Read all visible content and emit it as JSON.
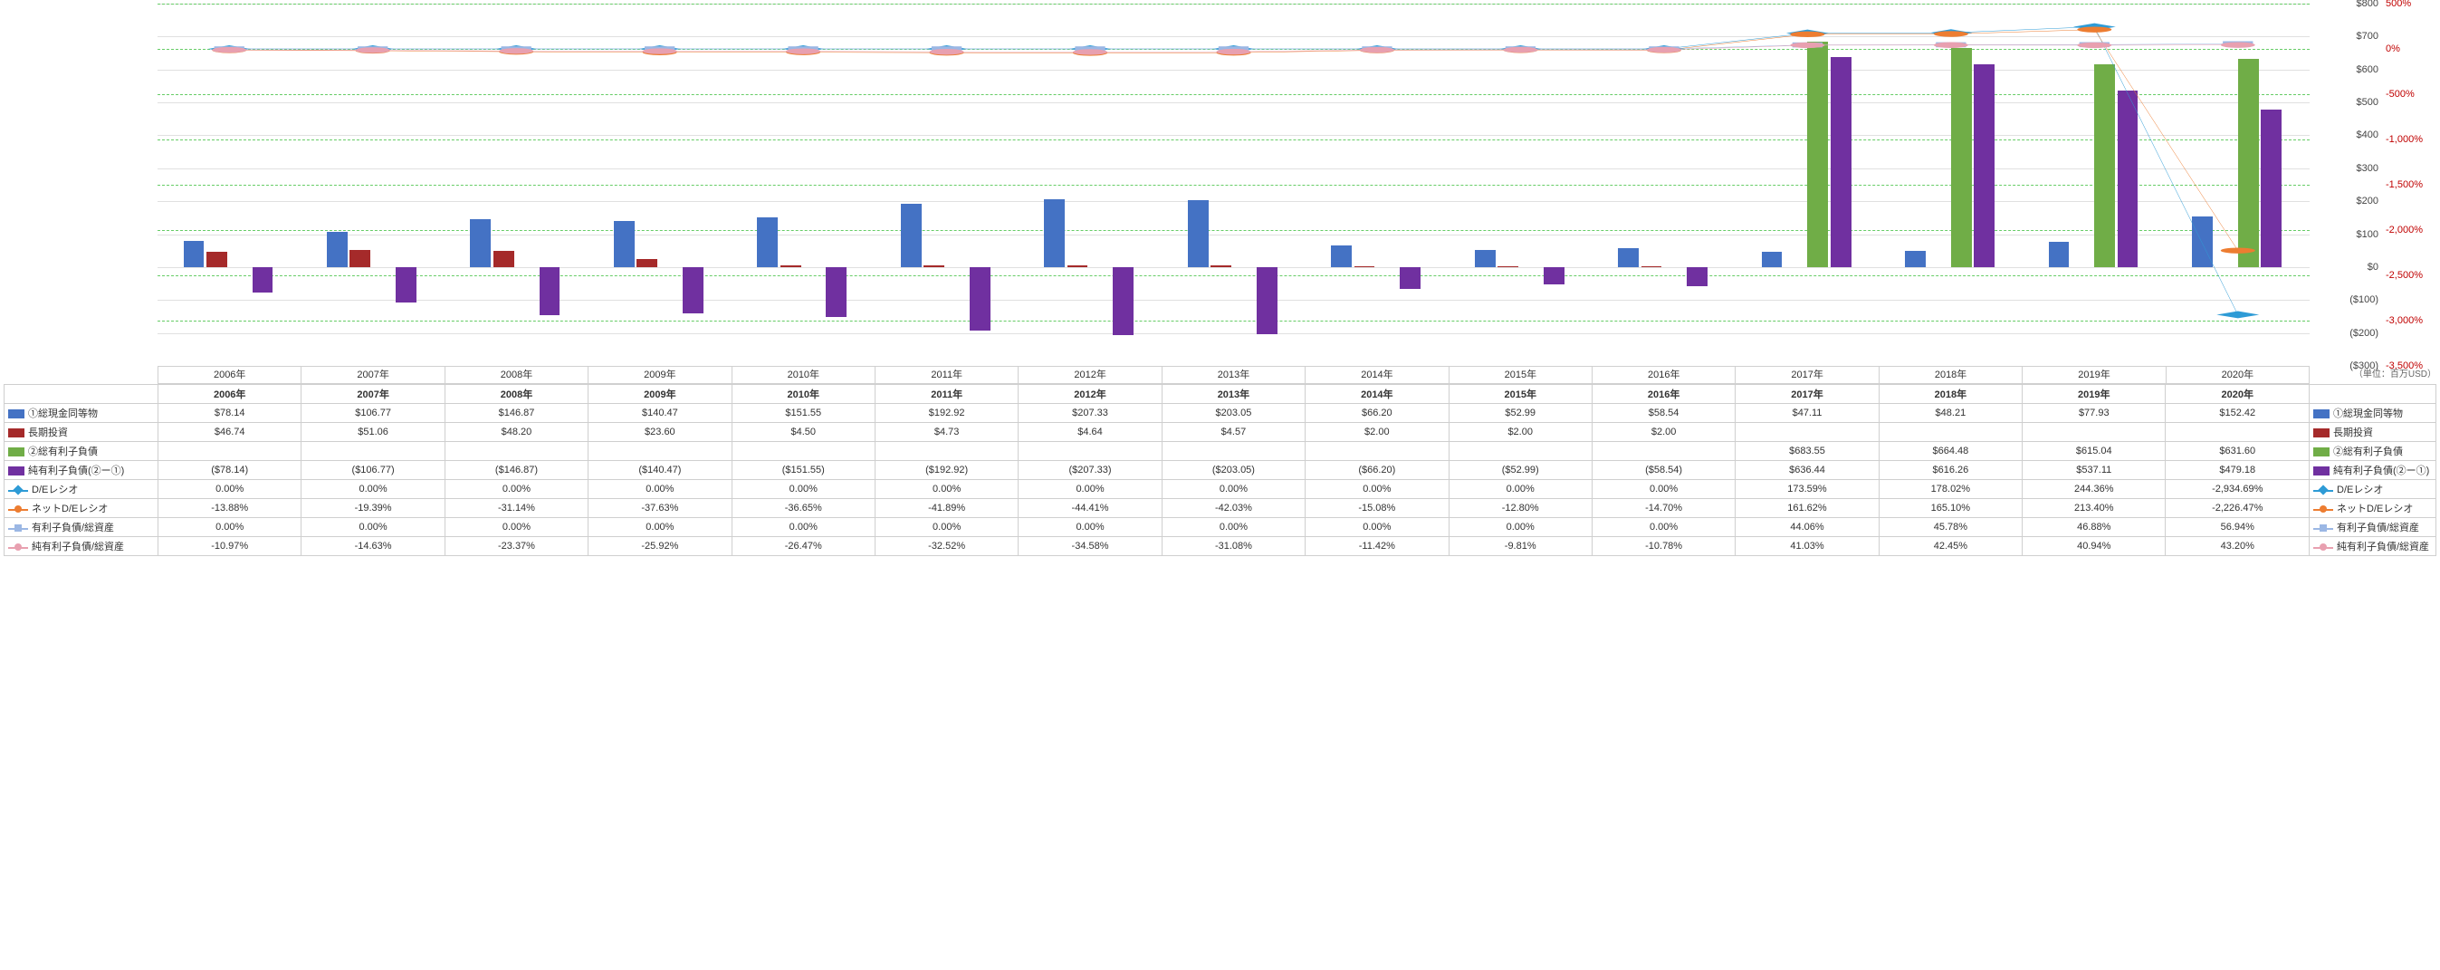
{
  "unit_label": "（単位：百万USD）",
  "years": [
    "2006年",
    "2007年",
    "2008年",
    "2009年",
    "2010年",
    "2011年",
    "2012年",
    "2013年",
    "2014年",
    "2015年",
    "2016年",
    "2017年",
    "2018年",
    "2019年",
    "2020年"
  ],
  "chart": {
    "plot_bg": "#ffffff",
    "grid_color": "#e0e0e0",
    "grid_dash_color": "#66cc66",
    "left_axis": {
      "min": -300,
      "max": 800,
      "step": 100,
      "format": "usd"
    },
    "right_axis": {
      "min": -3500,
      "max": 500,
      "step": 500,
      "format": "pct",
      "color": "#c00000"
    }
  },
  "series": [
    {
      "key": "cash",
      "name": "①総現金同等物",
      "type": "bar",
      "axis": "left",
      "color": "#4472c4",
      "marker": "bar",
      "display": [
        "$78.14",
        "$106.77",
        "$146.87",
        "$140.47",
        "$151.55",
        "$192.92",
        "$207.33",
        "$203.05",
        "$66.20",
        "$52.99",
        "$58.54",
        "$47.11",
        "$48.21",
        "$77.93",
        "$152.42"
      ],
      "values": [
        78.14,
        106.77,
        146.87,
        140.47,
        151.55,
        192.92,
        207.33,
        203.05,
        66.2,
        52.99,
        58.54,
        47.11,
        48.21,
        77.93,
        152.42
      ]
    },
    {
      "key": "lti",
      "name": "長期投資",
      "type": "bar",
      "axis": "left",
      "color": "#a52a2a",
      "marker": "bar",
      "display": [
        "$46.74",
        "$51.06",
        "$48.20",
        "$23.60",
        "$4.50",
        "$4.73",
        "$4.64",
        "$4.57",
        "$2.00",
        "$2.00",
        "$2.00",
        "",
        "",
        "",
        ""
      ],
      "values": [
        46.74,
        51.06,
        48.2,
        23.6,
        4.5,
        4.73,
        4.64,
        4.57,
        2.0,
        2.0,
        2.0,
        null,
        null,
        null,
        null
      ]
    },
    {
      "key": "debt",
      "name": "②総有利子負債",
      "type": "bar",
      "axis": "left",
      "color": "#70ad47",
      "marker": "bar",
      "display": [
        "",
        "",
        "",
        "",
        "",
        "",
        "",
        "",
        "",
        "",
        "",
        "$683.55",
        "$664.48",
        "$615.04",
        "$631.60"
      ],
      "values": [
        null,
        null,
        null,
        null,
        null,
        null,
        null,
        null,
        null,
        null,
        null,
        683.55,
        664.48,
        615.04,
        631.6
      ]
    },
    {
      "key": "netdebt",
      "name": "純有利子負債(②ー①)",
      "type": "bar",
      "axis": "left",
      "color": "#7030a0",
      "marker": "bar",
      "display": [
        "($78.14)",
        "($106.77)",
        "($146.87)",
        "($140.47)",
        "($151.55)",
        "($192.92)",
        "($207.33)",
        "($203.05)",
        "($66.20)",
        "($52.99)",
        "($58.54)",
        "$636.44",
        "$616.26",
        "$537.11",
        "$479.18"
      ],
      "values": [
        -78.14,
        -106.77,
        -146.87,
        -140.47,
        -151.55,
        -192.92,
        -207.33,
        -203.05,
        -66.2,
        -52.99,
        -58.54,
        636.44,
        616.26,
        537.11,
        479.18
      ]
    },
    {
      "key": "de",
      "name": "D/Eレシオ",
      "type": "line",
      "axis": "right",
      "color": "#2e9bd6",
      "marker": "diamond",
      "display": [
        "0.00%",
        "0.00%",
        "0.00%",
        "0.00%",
        "0.00%",
        "0.00%",
        "0.00%",
        "0.00%",
        "0.00%",
        "0.00%",
        "0.00%",
        "173.59%",
        "178.02%",
        "244.36%",
        "-2,934.69%"
      ],
      "values": [
        0,
        0,
        0,
        0,
        0,
        0,
        0,
        0,
        0,
        0,
        0,
        173.59,
        178.02,
        244.36,
        -2934.69
      ]
    },
    {
      "key": "netde",
      "name": "ネットD/Eレシオ",
      "type": "line",
      "axis": "right",
      "color": "#ed7d31",
      "marker": "circle",
      "display": [
        "-13.88%",
        "-19.39%",
        "-31.14%",
        "-37.63%",
        "-36.65%",
        "-41.89%",
        "-44.41%",
        "-42.03%",
        "-15.08%",
        "-12.80%",
        "-14.70%",
        "161.62%",
        "165.10%",
        "213.40%",
        "-2,226.47%"
      ],
      "values": [
        -13.88,
        -19.39,
        -31.14,
        -37.63,
        -36.65,
        -41.89,
        -44.41,
        -42.03,
        -15.08,
        -12.8,
        -14.7,
        161.62,
        165.1,
        213.4,
        -2226.47
      ]
    },
    {
      "key": "debt_ta",
      "name": "有利子負債/総資産",
      "type": "line",
      "axis": "right",
      "color": "#9bb7e4",
      "marker": "square",
      "display": [
        "0.00%",
        "0.00%",
        "0.00%",
        "0.00%",
        "0.00%",
        "0.00%",
        "0.00%",
        "0.00%",
        "0.00%",
        "0.00%",
        "0.00%",
        "44.06%",
        "45.78%",
        "46.88%",
        "56.94%"
      ],
      "values": [
        0,
        0,
        0,
        0,
        0,
        0,
        0,
        0,
        0,
        0,
        0,
        44.06,
        45.78,
        46.88,
        56.94
      ]
    },
    {
      "key": "netdebt_ta",
      "name": "純有利子負債/総資産",
      "type": "line",
      "axis": "right",
      "color": "#e8a0b0",
      "marker": "circle",
      "display": [
        "-10.97%",
        "-14.63%",
        "-23.37%",
        "-25.92%",
        "-26.47%",
        "-32.52%",
        "-34.58%",
        "-31.08%",
        "-11.42%",
        "-9.81%",
        "-10.78%",
        "41.03%",
        "42.45%",
        "40.94%",
        "43.20%"
      ],
      "values": [
        -10.97,
        -14.63,
        -23.37,
        -25.92,
        -26.47,
        -32.52,
        -34.58,
        -31.08,
        -11.42,
        -9.81,
        -10.78,
        41.03,
        42.45,
        40.94,
        43.2
      ]
    }
  ]
}
